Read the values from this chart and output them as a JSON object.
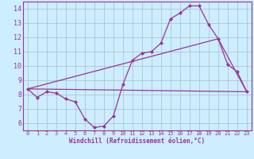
{
  "background_color": "#cceeff",
  "grid_color": "#aabbcc",
  "line_color": "#993399",
  "marker_color": "#993399",
  "xlabel": "Windchill (Refroidissement éolien,°C)",
  "xlabel_color": "#993399",
  "xlim": [
    -0.5,
    23.5
  ],
  "ylim": [
    5.5,
    14.5
  ],
  "yticks": [
    6,
    7,
    8,
    9,
    10,
    11,
    12,
    13,
    14
  ],
  "xticks": [
    0,
    1,
    2,
    3,
    4,
    5,
    6,
    7,
    8,
    9,
    10,
    11,
    12,
    13,
    14,
    15,
    16,
    17,
    18,
    19,
    20,
    21,
    22,
    23
  ],
  "line1_x": [
    0,
    1,
    2,
    3,
    4,
    5,
    6,
    7,
    8,
    9,
    10,
    11,
    12,
    13,
    14,
    15,
    16,
    17,
    18,
    19,
    20,
    21,
    22,
    23
  ],
  "line1_y": [
    8.4,
    7.8,
    8.2,
    8.1,
    7.7,
    7.5,
    6.3,
    5.7,
    5.8,
    6.5,
    8.7,
    10.4,
    10.9,
    11.0,
    11.6,
    13.3,
    13.7,
    14.2,
    14.2,
    12.9,
    11.9,
    10.1,
    9.6,
    8.2
  ],
  "line2_x": [
    0,
    23
  ],
  "line2_y": [
    8.4,
    8.2
  ],
  "line3_x": [
    0,
    20,
    23
  ],
  "line3_y": [
    8.4,
    11.9,
    8.2
  ]
}
